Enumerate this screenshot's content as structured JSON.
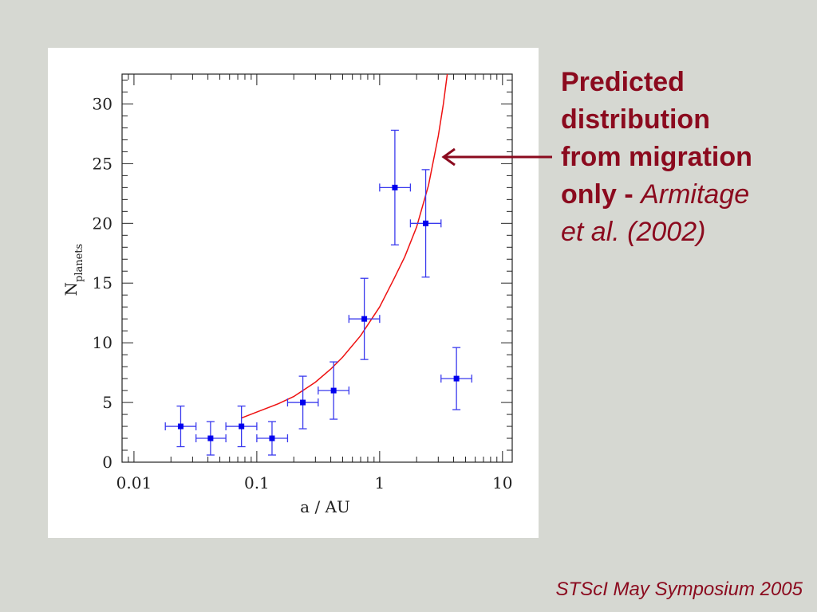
{
  "annotation": {
    "line1": "Predicted",
    "line2": "distribution",
    "line3": "from migration",
    "line4_bold": "only - ",
    "line4_italic": "Armitage",
    "line5_italic": "et al. (2002)",
    "color": "#8b0a1e"
  },
  "footer": {
    "text": "STScI May Symposium 2005"
  },
  "chart_data": {
    "type": "scatter",
    "xlabel": "a / AU",
    "ylabel": "N",
    "ylabel_subscript": "planets",
    "xscale": "log",
    "xlim": [
      0.008,
      12
    ],
    "ylim": [
      0,
      32.5
    ],
    "xticks": [
      0.01,
      0.1,
      1,
      10
    ],
    "xtick_labels": [
      "0.01",
      "0.1",
      "1",
      "10"
    ],
    "yticks": [
      0,
      5,
      10,
      15,
      20,
      25,
      30
    ],
    "ytick_labels": [
      "0",
      "5",
      "10",
      "15",
      "20",
      "25",
      "30"
    ],
    "points": [
      {
        "x": 0.024,
        "y": 3,
        "xerr": [
          0.018,
          0.032
        ],
        "yerr": [
          1.3,
          4.7
        ]
      },
      {
        "x": 0.042,
        "y": 2,
        "xerr": [
          0.032,
          0.056
        ],
        "yerr": [
          0.6,
          3.4
        ]
      },
      {
        "x": 0.075,
        "y": 3,
        "xerr": [
          0.056,
          0.1
        ],
        "yerr": [
          1.3,
          4.7
        ]
      },
      {
        "x": 0.133,
        "y": 2,
        "xerr": [
          0.1,
          0.178
        ],
        "yerr": [
          0.6,
          3.4
        ]
      },
      {
        "x": 0.237,
        "y": 5,
        "xerr": [
          0.178,
          0.316
        ],
        "yerr": [
          2.8,
          7.2
        ]
      },
      {
        "x": 0.422,
        "y": 6,
        "xerr": [
          0.316,
          0.562
        ],
        "yerr": [
          3.6,
          8.4
        ]
      },
      {
        "x": 0.75,
        "y": 12,
        "xerr": [
          0.562,
          1.0
        ],
        "yerr": [
          8.6,
          15.4
        ]
      },
      {
        "x": 1.33,
        "y": 23,
        "xerr": [
          1.0,
          1.78
        ],
        "yerr": [
          18.2,
          27.8
        ]
      },
      {
        "x": 2.37,
        "y": 20,
        "xerr": [
          1.78,
          3.16
        ],
        "yerr": [
          15.5,
          24.5
        ]
      },
      {
        "x": 4.22,
        "y": 7,
        "xerr": [
          3.16,
          5.62
        ],
        "yerr": [
          4.4,
          9.6
        ]
      }
    ],
    "curve": [
      {
        "x": 0.075,
        "y": 3.7
      },
      {
        "x": 0.1,
        "y": 4.2
      },
      {
        "x": 0.15,
        "y": 4.9
      },
      {
        "x": 0.2,
        "y": 5.5
      },
      {
        "x": 0.3,
        "y": 6.7
      },
      {
        "x": 0.4,
        "y": 7.8
      },
      {
        "x": 0.5,
        "y": 8.8
      },
      {
        "x": 0.7,
        "y": 10.6
      },
      {
        "x": 1.0,
        "y": 13.0
      },
      {
        "x": 1.3,
        "y": 15.3
      },
      {
        "x": 1.6,
        "y": 17.2
      },
      {
        "x": 2.0,
        "y": 19.7
      },
      {
        "x": 2.5,
        "y": 23.2
      },
      {
        "x": 3.0,
        "y": 27.3
      },
      {
        "x": 3.3,
        "y": 30.0
      },
      {
        "x": 3.55,
        "y": 32.5
      }
    ],
    "point_color": "#0000ee",
    "errorbar_color": "#3a3aee",
    "curve_color": "#ee1111"
  }
}
